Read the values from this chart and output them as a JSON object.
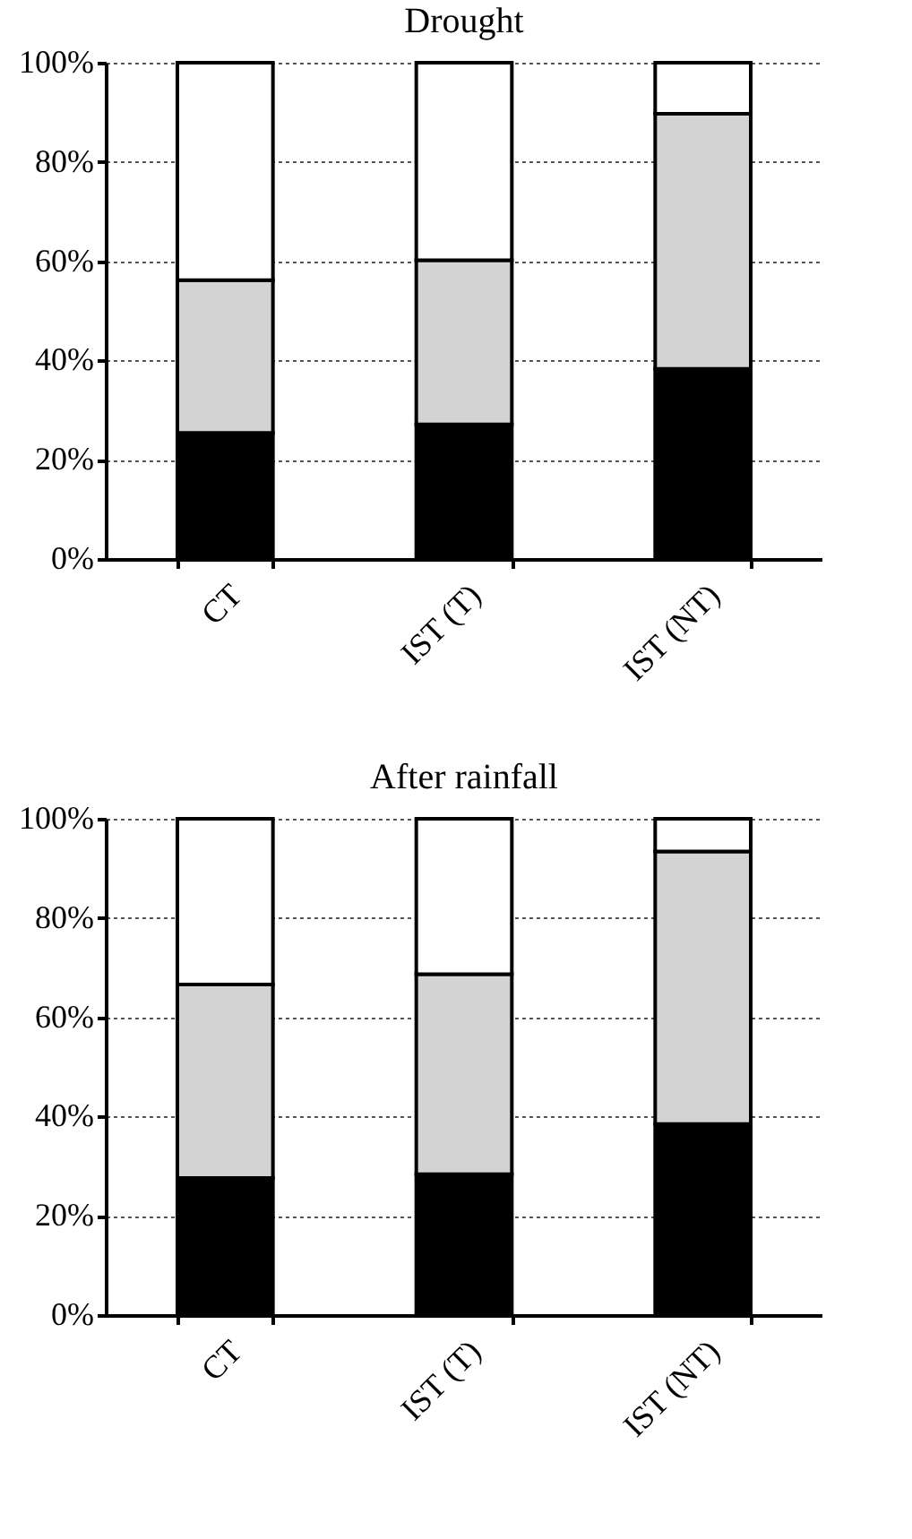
{
  "chart_data": [
    {
      "type": "bar",
      "title": "Drought",
      "categories": [
        "CT",
        "IST (T)",
        "IST (NT)"
      ],
      "stacked": true,
      "grid": "y",
      "legend": false,
      "series": [
        {
          "color": "#000000",
          "values": [
            25.4,
            27.1,
            38.3
          ]
        },
        {
          "color": "#d3d3d3",
          "values": [
            30.8,
            33.1,
            51.4
          ]
        },
        {
          "color": "#ffffff",
          "values": [
            43.8,
            39.8,
            10.3
          ]
        }
      ],
      "ylim": [
        0,
        100
      ],
      "yticks": [
        {
          "value": 0,
          "label": "0%"
        },
        {
          "value": 20,
          "label": "20%"
        },
        {
          "value": 40,
          "label": "40%"
        },
        {
          "value": 60,
          "label": "60%"
        },
        {
          "value": 80,
          "label": "80%"
        },
        {
          "value": 100,
          "label": "100%"
        }
      ]
    },
    {
      "type": "bar",
      "title": "After rainfall",
      "categories": [
        "CT",
        "IST (T)",
        "IST (NT)"
      ],
      "stacked": true,
      "grid": "y",
      "legend": false,
      "series": [
        {
          "color": "#000000",
          "values": [
            27.6,
            28.4,
            38.5
          ]
        },
        {
          "color": "#d3d3d3",
          "values": [
            39.0,
            40.3,
            54.9
          ]
        },
        {
          "color": "#ffffff",
          "values": [
            33.4,
            31.3,
            6.6
          ]
        }
      ],
      "ylim": [
        0,
        100
      ],
      "yticks": [
        {
          "value": 0,
          "label": "0%"
        },
        {
          "value": 20,
          "label": "20%"
        },
        {
          "value": 40,
          "label": "40%"
        },
        {
          "value": 60,
          "label": "60%"
        },
        {
          "value": 80,
          "label": "80%"
        },
        {
          "value": 100,
          "label": "100%"
        }
      ]
    }
  ]
}
